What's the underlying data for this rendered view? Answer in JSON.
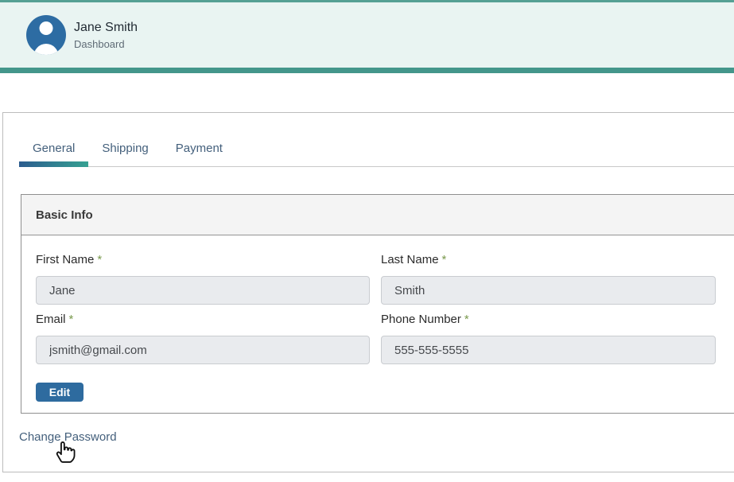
{
  "header": {
    "user_name": "Jane Smith",
    "subtitle": "Dashboard"
  },
  "tabs": [
    {
      "label": "General",
      "active": true
    },
    {
      "label": "Shipping",
      "active": false
    },
    {
      "label": "Payment",
      "active": false
    }
  ],
  "section": {
    "title": "Basic Info"
  },
  "form": {
    "required_marker": "*",
    "fields": [
      {
        "label": "First Name",
        "required": true,
        "value": "Jane"
      },
      {
        "label": "Last Name",
        "required": true,
        "value": "Smith"
      },
      {
        "label": "Email",
        "required": true,
        "value": "jsmith@gmail.com"
      },
      {
        "label": "Phone Number",
        "required": true,
        "value": "555-555-5555"
      }
    ],
    "edit_label": "Edit"
  },
  "links": {
    "change_password": "Change Password"
  },
  "icons": {
    "avatar": "person-icon",
    "cursor": "hand-pointer-icon"
  },
  "colors": {
    "accent_teal": "#44968b",
    "header_bg": "#e9f4f2",
    "avatar_blue": "#2d6ca3",
    "button_blue": "#2e6b9f",
    "tab_text": "#44607c",
    "required_green": "#7a9a4e",
    "tab_underline_gradient_start": "#2b5c8e",
    "tab_underline_gradient_end": "#36a192"
  }
}
